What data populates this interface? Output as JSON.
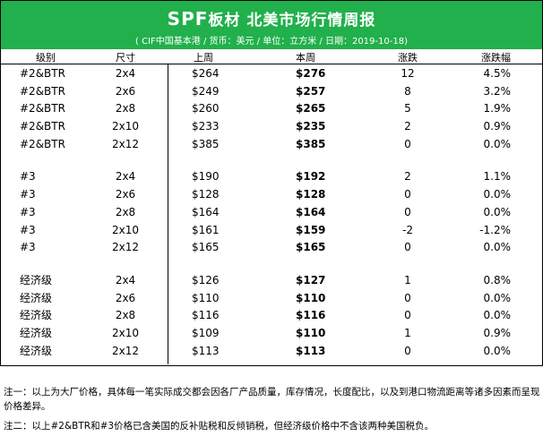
{
  "header": {
    "title_brand": "SPF",
    "title_rest": "板材 北美市场行情周报",
    "subtitle": "( CIF中国基本港 / 货币：美元 / 单位：立方米 / 日期：2019-10-18)"
  },
  "columns": [
    "级别",
    "尺寸",
    "上周",
    "本周",
    "涨跌",
    "涨跌幅"
  ],
  "groups": [
    {
      "rows": [
        [
          "#2&BTR",
          "2x4",
          "$264",
          "$276",
          "12",
          "4.5%"
        ],
        [
          "#2&BTR",
          "2x6",
          "$249",
          "$257",
          "8",
          "3.2%"
        ],
        [
          "#2&BTR",
          "2x8",
          "$260",
          "$265",
          "5",
          "1.9%"
        ],
        [
          "#2&BTR",
          "2x10",
          "$233",
          "$235",
          "2",
          "0.9%"
        ],
        [
          "#2&BTR",
          "2x12",
          "$385",
          "$385",
          "0",
          "0.0%"
        ]
      ]
    },
    {
      "rows": [
        [
          "#3",
          "2x4",
          "$190",
          "$192",
          "2",
          "1.1%"
        ],
        [
          "#3",
          "2x6",
          "$128",
          "$128",
          "0",
          "0.0%"
        ],
        [
          "#3",
          "2x8",
          "$164",
          "$164",
          "0",
          "0.0%"
        ],
        [
          "#3",
          "2x10",
          "$161",
          "$159",
          "-2",
          "-1.2%"
        ],
        [
          "#3",
          "2x12",
          "$165",
          "$165",
          "0",
          "0.0%"
        ]
      ]
    },
    {
      "rows": [
        [
          "经济级",
          "2x4",
          "$126",
          "$127",
          "1",
          "0.8%"
        ],
        [
          "经济级",
          "2x6",
          "$110",
          "$110",
          "0",
          "0.0%"
        ],
        [
          "经济级",
          "2x8",
          "$116",
          "$116",
          "0",
          "0.0%"
        ],
        [
          "经济级",
          "2x10",
          "$109",
          "$110",
          "1",
          "0.9%"
        ],
        [
          "经济级",
          "2x12",
          "$113",
          "$113",
          "0",
          "0.0%"
        ]
      ]
    }
  ],
  "notes": {
    "note1": "注一：以上为大厂价格，具体每一笔实际成交都会因各厂产品质量，库存情况，长度配比，以及到港口物流距离等诸多因素而呈现价格差异。",
    "note2": "注二：以上#2&BTR和#3价格已含美国的反补贴税和反倾销税，但经济级价格中不含该两种美国税负。"
  },
  "colors": {
    "header_bg": "#21b04b",
    "header_text": "#ffffff"
  }
}
